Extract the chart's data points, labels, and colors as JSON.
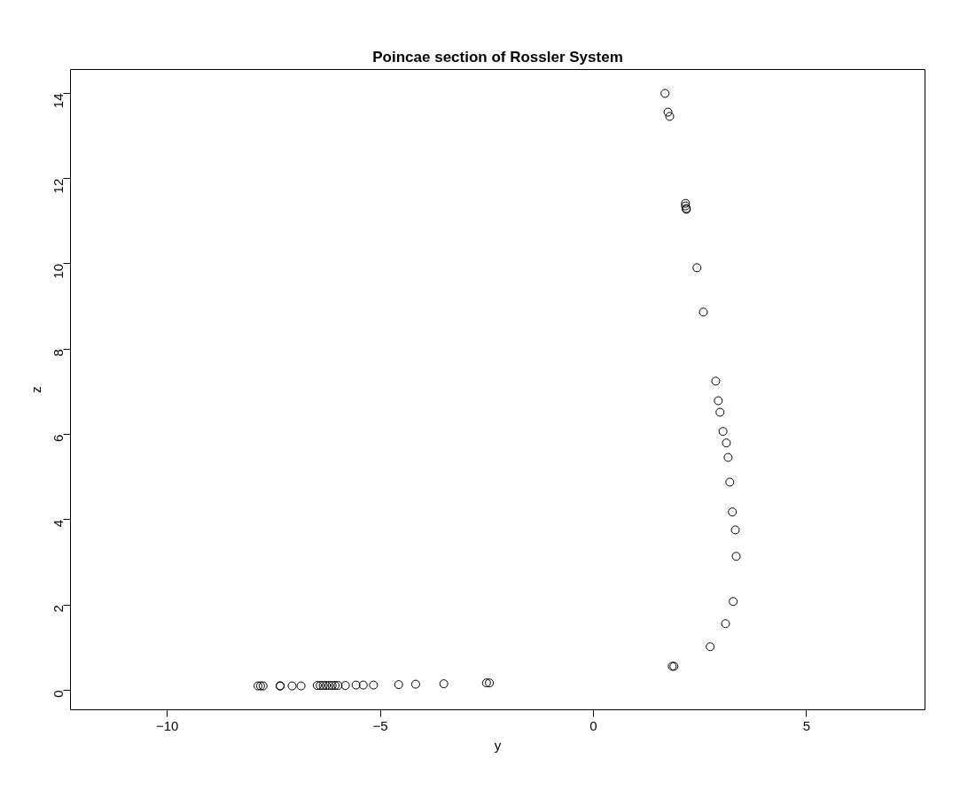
{
  "chart_data": {
    "type": "scatter",
    "title": "Poincae section of Rossler System",
    "xlabel": "y",
    "ylabel": "z",
    "xlim": [
      -12.27,
      7.78
    ],
    "ylim": [
      -0.46,
      14.56
    ],
    "xticks": [
      -10,
      -5,
      0,
      5
    ],
    "yticks": [
      0,
      2,
      4,
      6,
      8,
      10,
      12,
      14
    ],
    "grid": false,
    "marker": "circle",
    "series": [
      {
        "color": "#000000",
        "x": [
          1.68,
          1.75,
          1.79,
          2.16,
          2.16,
          2.18,
          2.18,
          2.43,
          2.58,
          2.87,
          2.93,
          2.97,
          3.04,
          3.12,
          3.16,
          3.2,
          3.26,
          3.33,
          3.35,
          3.28,
          3.1,
          2.74,
          1.85,
          1.89,
          -7.87,
          -7.81,
          -7.75,
          -7.35,
          -7.35,
          -7.07,
          -6.86,
          -6.48,
          -6.41,
          -6.34,
          -6.27,
          -6.2,
          -6.13,
          -6.06,
          -5.99,
          -5.82,
          -5.57,
          -5.4,
          -5.16,
          -4.57,
          -4.17,
          -3.51,
          -2.51,
          -2.44
        ],
        "values": [
          14.0,
          13.56,
          13.46,
          11.42,
          11.36,
          11.3,
          11.28,
          9.91,
          8.87,
          7.25,
          6.79,
          6.52,
          6.07,
          5.8,
          5.46,
          4.88,
          4.18,
          3.76,
          3.14,
          2.08,
          1.56,
          1.02,
          0.56,
          0.56,
          0.1,
          0.1,
          0.1,
          0.1,
          0.1,
          0.1,
          0.1,
          0.11,
          0.11,
          0.11,
          0.11,
          0.11,
          0.11,
          0.11,
          0.11,
          0.11,
          0.12,
          0.12,
          0.12,
          0.13,
          0.14,
          0.15,
          0.17,
          0.17
        ]
      }
    ]
  }
}
